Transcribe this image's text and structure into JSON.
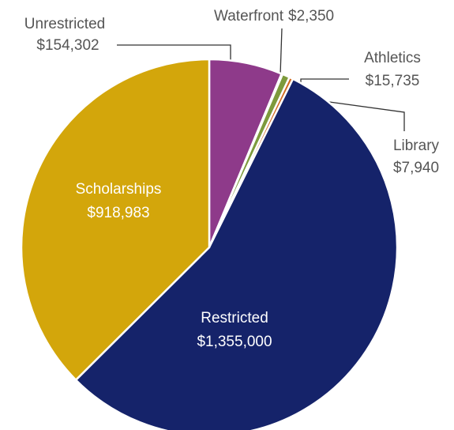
{
  "chart_data": {
    "type": "pie",
    "categories": [
      "Unrestricted",
      "Waterfront",
      "Athletics",
      "Library",
      "Restricted",
      "Scholarships"
    ],
    "values": [
      154302,
      2350,
      15735,
      7940,
      1355000,
      918983
    ],
    "value_labels": [
      "$154,302",
      "$2,350",
      "$15,735",
      "$7,940",
      "$1,355,000",
      "$918,983"
    ],
    "colors": [
      "#8e3a8a",
      "#17a5c0",
      "#7d9a3c",
      "#d2691f",
      "#15236a",
      "#d3a60b"
    ]
  }
}
